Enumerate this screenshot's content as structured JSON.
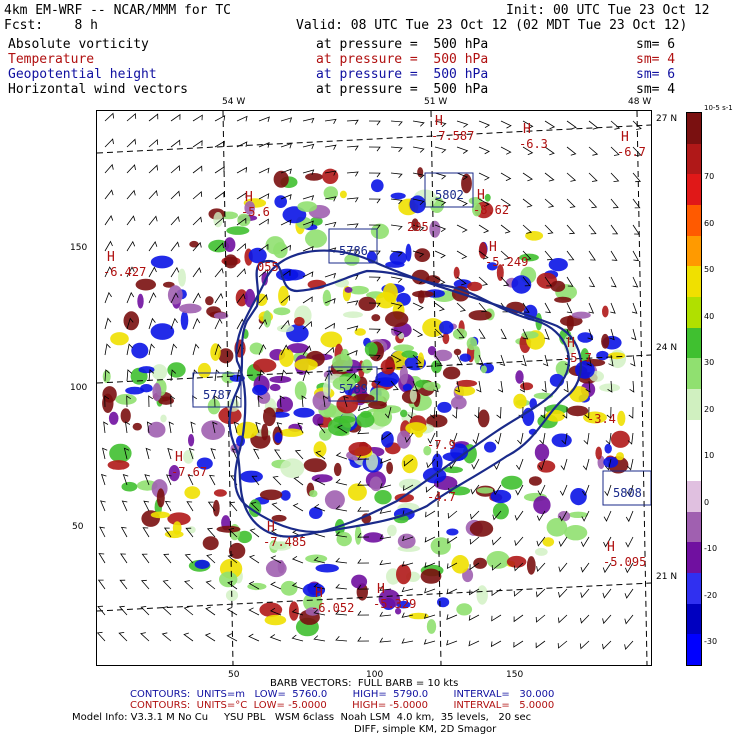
{
  "header": {
    "line1_left": "4km EM-WRF -- NCAR/MMM for TC",
    "line1_right": "Init: 00 UTC Tue 23 Oct 12",
    "line2_left": "Fcst:    8 h",
    "line2_right": "Valid: 08 UTC Tue 23 Oct 12 (02 MDT Tue 23 Oct 12)"
  },
  "fields": [
    {
      "name": "Absolute vorticity",
      "level": "at pressure =  500 hPa",
      "sm": "sm= 6",
      "color": "#000000"
    },
    {
      "name": "Temperature",
      "level": "at pressure =  500 hPa",
      "sm": "sm= 4",
      "color": "#b01010"
    },
    {
      "name": "Geopotential height",
      "level": "at pressure =  500 hPa",
      "sm": "sm= 6",
      "color": "#1010a0"
    },
    {
      "name": "Horizontal wind vectors",
      "level": "at pressure =  500 hPa",
      "sm": "sm= 4",
      "color": "#000000"
    }
  ],
  "axes": {
    "top_lon": [
      "54 W",
      "51 W",
      "48 W"
    ],
    "right_lat": [
      "27 N",
      "24 N",
      "21 N"
    ],
    "left_ticks": [
      "150",
      "100",
      "50"
    ],
    "bottom_ticks": [
      "50",
      "100",
      "150"
    ]
  },
  "colorbar": {
    "unit": "10-5 s-1",
    "labels": [
      "70",
      "60",
      "50",
      "40",
      "30",
      "20",
      "10",
      "0",
      "-10",
      "-20",
      "-30"
    ],
    "colors": [
      "#7a1010",
      "#b01818",
      "#e01818",
      "#ff5a00",
      "#ff9a00",
      "#f0e000",
      "#b0e000",
      "#40c030",
      "#90e070",
      "#d0f0c0",
      "#ffffff",
      "#ffffff",
      "#e0c0e0",
      "#a060b0",
      "#7010a0",
      "#3030f0",
      "#0000c0",
      "#0000ff"
    ]
  },
  "labels": {
    "H": [
      {
        "t": "H",
        "v": "-7.587"
      },
      {
        "t": "H",
        "v": "-6.3"
      },
      {
        "t": "H",
        "v": "-6.7"
      },
      {
        "t": "H",
        "v": "-5.6"
      },
      {
        "t": "H",
        "v": "-6.427"
      },
      {
        "t": "H",
        "v": "-8.62"
      },
      {
        "t": "H",
        "v": "-5.249"
      },
      {
        "t": "H",
        "v": "-7.67"
      },
      {
        "t": "H",
        "v": "-7.485"
      },
      {
        "t": "H",
        "v": "-5.329"
      },
      {
        "t": "H",
        "v": "-6.052"
      },
      {
        "t": "H",
        "v": "-5.095"
      },
      {
        "t": "H",
        "v": "-5.7"
      }
    ],
    "boxes": [
      "5802",
      "5786",
      "5787",
      "5789",
      "5808"
    ],
    "misc": [
      "295",
      "055",
      "-7.9",
      "-4.7",
      "-3.4"
    ]
  },
  "footer": {
    "barb": "BARB VECTORS:  FULL BARB = 10 kts",
    "contours1": "CONTOURS:  UNITS=m   LOW=  5760.0        HIGH=  5790.0        INTERVAL=   30.000",
    "contours2": "CONTOURS:  UNITS=°C  LOW= -5.0000        HIGH= -5.0000        INTERVAL=   5.0000",
    "model1": "Model Info: V3.3.1 M No Cu     YSU PBL   WSM 6class  Noah LSM  4.0 km,  35 levels,   20 sec",
    "model2": "DIFF, simple KM, 2D Smagor"
  }
}
